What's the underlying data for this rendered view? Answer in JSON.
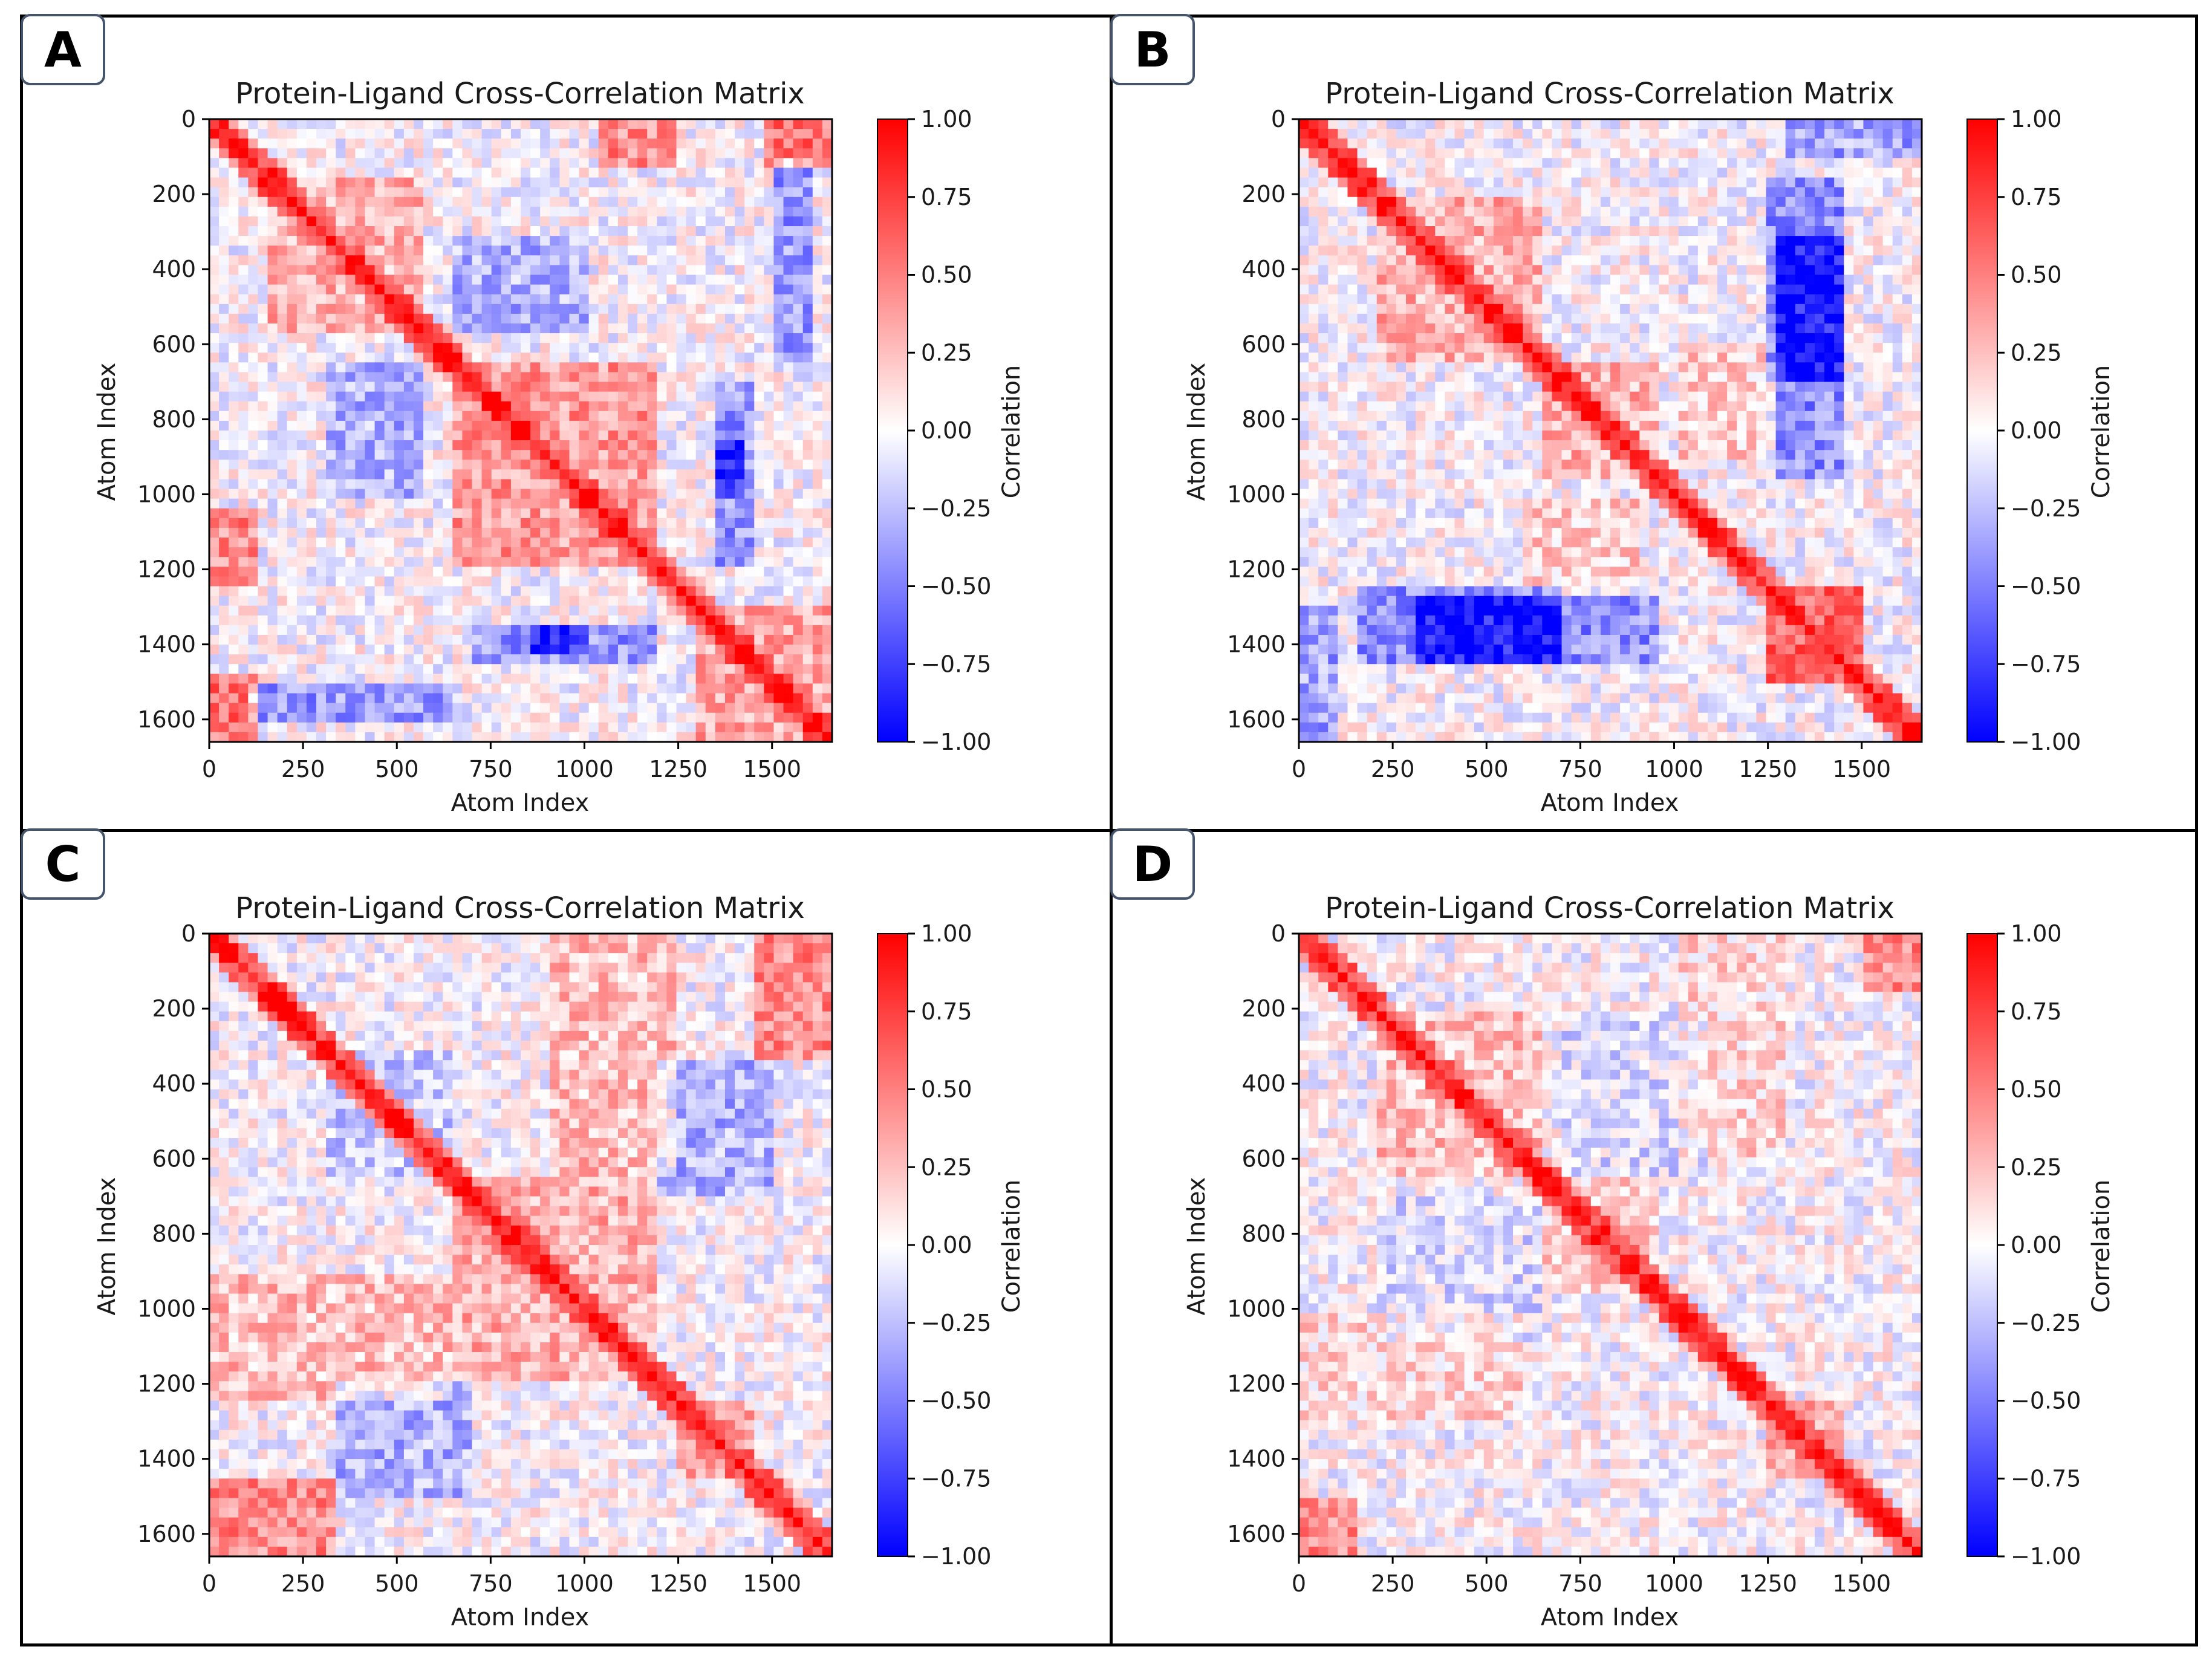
{
  "figure": {
    "panel_count": 4
  },
  "palette": {
    "neg": "#0000ff",
    "mid": "#ffffff",
    "pos": "#ff0000",
    "frame": "#000000",
    "badge_border": "#44546a"
  },
  "chart_data": [
    {
      "panel_label": "A",
      "type": "heatmap",
      "title": "Protein-Ligand Cross-Correlation Matrix",
      "xlabel": "Atom Index",
      "ylabel": "Atom Index",
      "colorbar_label": "Correlation",
      "xlim": [
        0,
        1660
      ],
      "ylim": [
        1660,
        0
      ],
      "xticks": [
        0,
        250,
        500,
        750,
        1000,
        1250,
        1500
      ],
      "xtick_labels": [
        "0",
        "250",
        "500",
        "750",
        "1000",
        "1250",
        "1500"
      ],
      "yticks": [
        0,
        200,
        400,
        600,
        800,
        1000,
        1200,
        1400,
        1600
      ],
      "ytick_labels": [
        "0",
        "200",
        "400",
        "600",
        "800",
        "1000",
        "1200",
        "1400",
        "1600"
      ],
      "colorbar_ticks": [
        1.0,
        0.75,
        0.5,
        0.25,
        0.0,
        -0.25,
        -0.5,
        -0.75,
        -1.0
      ],
      "colorbar_tick_labels": [
        "1.00",
        "0.75",
        "0.50",
        "0.25",
        "0.00",
        "−0.25",
        "−0.50",
        "−0.75",
        "−1.00"
      ],
      "vmin": -1.0,
      "vmax": 1.0,
      "blocks": [
        {
          "x": [
            650,
            1200
          ],
          "y": [
            650,
            1200
          ],
          "v": 0.4
        },
        {
          "x": [
            150,
            560
          ],
          "y": [
            150,
            560
          ],
          "v": 0.3
        },
        {
          "x": [
            1300,
            1660
          ],
          "y": [
            1300,
            1660
          ],
          "v": 0.35
        },
        {
          "x": [
            0,
            120
          ],
          "y": [
            1480,
            1660
          ],
          "v": 0.55
        },
        {
          "x": [
            1480,
            1660
          ],
          "y": [
            0,
            120
          ],
          "v": 0.55
        },
        {
          "x": [
            1500,
            1620
          ],
          "y": [
            100,
            650
          ],
          "v": -0.4
        },
        {
          "x": [
            100,
            650
          ],
          "y": [
            1500,
            1620
          ],
          "v": -0.4
        },
        {
          "x": [
            320,
            560
          ],
          "y": [
            650,
            1000
          ],
          "v": -0.3
        },
        {
          "x": [
            650,
            1000
          ],
          "y": [
            320,
            560
          ],
          "v": -0.3
        },
        {
          "x": [
            0,
            120
          ],
          "y": [
            1050,
            1250
          ],
          "v": 0.45
        },
        {
          "x": [
            1050,
            1250
          ],
          "y": [
            0,
            120
          ],
          "v": 0.45
        },
        {
          "x": [
            850,
            1000
          ],
          "y": [
            1350,
            1420
          ],
          "v": -0.45
        },
        {
          "x": [
            1350,
            1420
          ],
          "y": [
            850,
            1000
          ],
          "v": -0.45
        },
        {
          "x": [
            1350,
            1450
          ],
          "y": [
            700,
            1200
          ],
          "v": -0.4
        },
        {
          "x": [
            700,
            1200
          ],
          "y": [
            1350,
            1450
          ],
          "v": -0.4
        }
      ]
    },
    {
      "panel_label": "B",
      "type": "heatmap",
      "title": "Protein-Ligand Cross-Correlation Matrix",
      "xlabel": "Atom Index",
      "ylabel": "Atom Index",
      "colorbar_label": "Correlation",
      "xlim": [
        0,
        1660
      ],
      "ylim": [
        1660,
        0
      ],
      "xticks": [
        0,
        250,
        500,
        750,
        1000,
        1250,
        1500
      ],
      "xtick_labels": [
        "0",
        "250",
        "500",
        "750",
        "1000",
        "1250",
        "1500"
      ],
      "yticks": [
        0,
        200,
        400,
        600,
        800,
        1000,
        1200,
        1400,
        1600
      ],
      "ytick_labels": [
        "0",
        "200",
        "400",
        "600",
        "800",
        "1000",
        "1200",
        "1400",
        "1600"
      ],
      "colorbar_ticks": [
        1.0,
        0.75,
        0.5,
        0.25,
        0.0,
        -0.25,
        -0.5,
        -0.75,
        -1.0
      ],
      "colorbar_tick_labels": [
        "1.00",
        "0.75",
        "0.50",
        "0.25",
        "0.00",
        "−0.25",
        "−0.50",
        "−0.75",
        "−1.00"
      ],
      "vmin": -1.0,
      "vmax": 1.0,
      "blocks": [
        {
          "x": [
            1250,
            1500
          ],
          "y": [
            1250,
            1500
          ],
          "v": 0.6
        },
        {
          "x": [
            200,
            650
          ],
          "y": [
            200,
            650
          ],
          "v": 0.3
        },
        {
          "x": [
            650,
            950
          ],
          "y": [
            650,
            950
          ],
          "v": 0.3
        },
        {
          "x": [
            1250,
            1450
          ],
          "y": [
            150,
            700
          ],
          "v": -0.45
        },
        {
          "x": [
            150,
            700
          ],
          "y": [
            1250,
            1450
          ],
          "v": -0.45
        },
        {
          "x": [
            300,
            950
          ],
          "y": [
            1280,
            1460
          ],
          "v": -0.45
        },
        {
          "x": [
            1280,
            1460
          ],
          "y": [
            300,
            950
          ],
          "v": -0.45
        },
        {
          "x": [
            0,
            100
          ],
          "y": [
            1300,
            1660
          ],
          "v": -0.35
        },
        {
          "x": [
            1300,
            1660
          ],
          "y": [
            0,
            100
          ],
          "v": -0.35
        },
        {
          "x": [
            600,
            900
          ],
          "y": [
            1000,
            1250
          ],
          "v": 0.2
        },
        {
          "x": [
            1000,
            1250
          ],
          "y": [
            600,
            900
          ],
          "v": 0.2
        }
      ]
    },
    {
      "panel_label": "C",
      "type": "heatmap",
      "title": "Protein-Ligand Cross-Correlation Matrix",
      "xlabel": "Atom Index",
      "ylabel": "Atom Index",
      "colorbar_label": "Correlation",
      "xlim": [
        0,
        1660
      ],
      "ylim": [
        1660,
        0
      ],
      "xticks": [
        0,
        250,
        500,
        750,
        1000,
        1250,
        1500
      ],
      "xtick_labels": [
        "0",
        "250",
        "500",
        "750",
        "1000",
        "1250",
        "1500"
      ],
      "yticks": [
        0,
        200,
        400,
        600,
        800,
        1000,
        1200,
        1400,
        1600
      ],
      "ytick_labels": [
        "0",
        "200",
        "400",
        "600",
        "800",
        "1000",
        "1200",
        "1400",
        "1600"
      ],
      "colorbar_ticks": [
        1.0,
        0.75,
        0.5,
        0.25,
        0.0,
        -0.25,
        -0.5,
        -0.75,
        -1.0
      ],
      "colorbar_tick_labels": [
        "1.00",
        "0.75",
        "0.50",
        "0.25",
        "0.00",
        "−0.25",
        "−0.50",
        "−0.75",
        "−1.00"
      ],
      "vmin": -1.0,
      "vmax": 1.0,
      "blocks": [
        {
          "x": [
            650,
            1200
          ],
          "y": [
            650,
            1200
          ],
          "v": 0.3
        },
        {
          "x": [
            0,
            650
          ],
          "y": [
            900,
            1250
          ],
          "v": 0.25
        },
        {
          "x": [
            900,
            1250
          ],
          "y": [
            0,
            650
          ],
          "v": 0.25
        },
        {
          "x": [
            0,
            350
          ],
          "y": [
            1450,
            1660
          ],
          "v": 0.45
        },
        {
          "x": [
            1450,
            1660
          ],
          "y": [
            0,
            350
          ],
          "v": 0.45
        },
        {
          "x": [
            1250,
            1450
          ],
          "y": [
            1250,
            1450
          ],
          "v": 0.35
        },
        {
          "x": [
            300,
            650
          ],
          "y": [
            300,
            650
          ],
          "v": -0.2
        },
        {
          "x": [
            1200,
            1500
          ],
          "y": [
            350,
            700
          ],
          "v": -0.3
        },
        {
          "x": [
            350,
            700
          ],
          "y": [
            1200,
            1500
          ],
          "v": -0.3
        }
      ]
    },
    {
      "panel_label": "D",
      "type": "heatmap",
      "title": "Protein-Ligand Cross-Correlation Matrix",
      "xlabel": "Atom Index",
      "ylabel": "Atom Index",
      "colorbar_label": "Correlation",
      "xlim": [
        0,
        1660
      ],
      "ylim": [
        1660,
        0
      ],
      "xticks": [
        0,
        250,
        500,
        750,
        1000,
        1250,
        1500
      ],
      "xtick_labels": [
        "0",
        "250",
        "500",
        "750",
        "1000",
        "1250",
        "1500"
      ],
      "yticks": [
        0,
        200,
        400,
        600,
        800,
        1000,
        1200,
        1400,
        1600
      ],
      "ytick_labels": [
        "0",
        "200",
        "400",
        "600",
        "800",
        "1000",
        "1200",
        "1400",
        "1600"
      ],
      "colorbar_ticks": [
        1.0,
        0.75,
        0.5,
        0.25,
        0.0,
        -0.25,
        -0.5,
        -0.75,
        -1.0
      ],
      "colorbar_tick_labels": [
        "1.00",
        "0.75",
        "0.50",
        "0.25",
        "0.00",
        "−0.25",
        "−0.50",
        "−0.75",
        "−1.00"
      ],
      "vmin": -1.0,
      "vmax": 1.0,
      "blocks": [
        {
          "x": [
            200,
            650
          ],
          "y": [
            200,
            650
          ],
          "v": 0.25
        },
        {
          "x": [
            650,
            950
          ],
          "y": [
            650,
            950
          ],
          "v": 0.2
        },
        {
          "x": [
            1250,
            1450
          ],
          "y": [
            1250,
            1450
          ],
          "v": 0.3
        },
        {
          "x": [
            1500,
            1660
          ],
          "y": [
            0,
            150
          ],
          "v": 0.45
        },
        {
          "x": [
            0,
            150
          ],
          "y": [
            1500,
            1660
          ],
          "v": 0.45
        },
        {
          "x": [
            0,
            600
          ],
          "y": [
            1000,
            1300
          ],
          "v": 0.15
        },
        {
          "x": [
            1000,
            1300
          ],
          "y": [
            0,
            600
          ],
          "v": 0.15
        },
        {
          "x": [
            700,
            1100
          ],
          "y": [
            200,
            650
          ],
          "v": -0.12
        },
        {
          "x": [
            200,
            650
          ],
          "y": [
            700,
            1100
          ],
          "v": -0.12
        }
      ]
    }
  ]
}
